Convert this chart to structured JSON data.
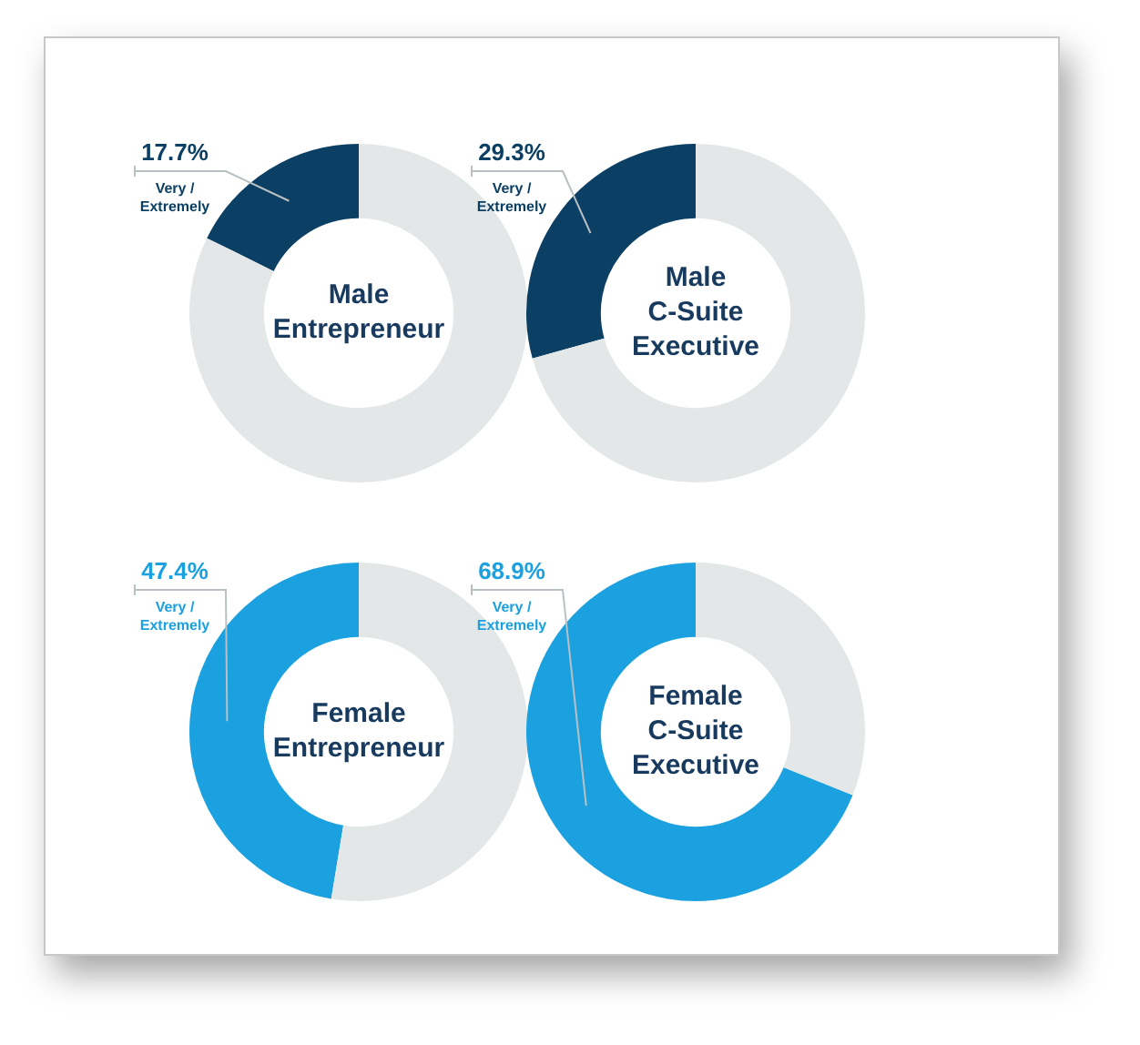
{
  "chart_data": [
    {
      "type": "donut",
      "title": "Male Entrepreneur",
      "categories": [
        "Very / Extremely",
        null
      ],
      "values": [
        17.7,
        82.3
      ],
      "colors": [
        "#0b3f63",
        "#e3e7e8"
      ],
      "value_labels": [
        "17.7%",
        null
      ]
    },
    {
      "type": "donut",
      "title": "Male C-Suite Executive",
      "categories": [
        "Very / Extremely",
        null
      ],
      "values": [
        29.3,
        70.7
      ],
      "colors": [
        "#0b3f63",
        "#e3e7e8"
      ],
      "value_labels": [
        "29.3%",
        null
      ]
    },
    {
      "type": "donut",
      "title": "Female Entrepreneur",
      "categories": [
        "Very / Extremely",
        null
      ],
      "values": [
        47.4,
        52.6
      ],
      "colors": [
        "#1ba1e0",
        "#e3e7e8"
      ],
      "value_labels": [
        "47.4%",
        null
      ]
    },
    {
      "type": "donut",
      "title": "Female C-Suite Executive",
      "categories": [
        "Very / Extremely",
        null
      ],
      "values": [
        68.9,
        31.1
      ],
      "colors": [
        "#1ba1e0",
        "#e3e7e8"
      ],
      "value_labels": [
        "68.9%",
        null
      ]
    }
  ]
}
